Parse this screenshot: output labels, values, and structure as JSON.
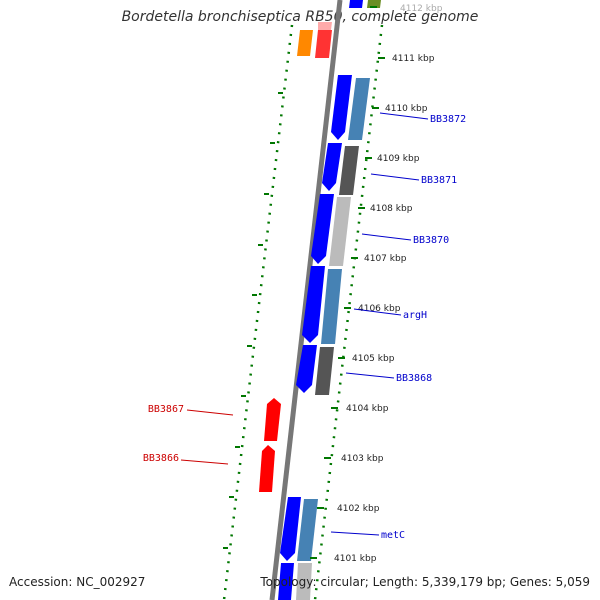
{
  "title": "Bordetella bronchiseptica RB50, complete genome",
  "accession": "Accession: NC_002927",
  "stats": "Topology: circular; Length: 5,339,179 bp; Genes: 5,059",
  "colors": {
    "forward_strand": "#0000ff",
    "reverse_strand": "#ff0000",
    "orange": "#ff8800",
    "pink": "#ffaaaa",
    "steel_blue": "#4682b4",
    "dark_gray": "#555555",
    "light_gray": "#bbbbbb",
    "olive": "#6b8e23",
    "dotted_ring": "#007700",
    "backbone": "#777777",
    "label_blue": "#0000cc",
    "label_red": "#cc0000"
  },
  "kbp_markers": [
    "4112 kbp",
    "4111 kbp",
    "4110 kbp",
    "4109 kbp",
    "4108 kbp",
    "4107 kbp",
    "4106 kbp",
    "4105 kbp",
    "4104 kbp",
    "4103 kbp",
    "4102 kbp",
    "4101 kbp"
  ],
  "gene_labels_right": [
    "BB3872",
    "BB3871",
    "BB3870",
    "argH",
    "BB3868",
    "metC"
  ],
  "gene_labels_left": [
    "BB3867",
    "BB3866"
  ]
}
